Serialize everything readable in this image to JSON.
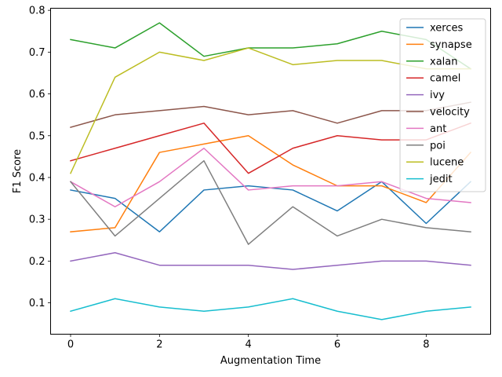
{
  "chart_data": {
    "type": "line",
    "xlabel": "Augmentation Time",
    "ylabel": "F1 Score",
    "x": [
      0,
      1,
      2,
      3,
      4,
      5,
      6,
      7,
      8,
      9
    ],
    "xlim": [
      -0.45,
      9.45
    ],
    "ylim": [
      0.025,
      0.805
    ],
    "xticks": [
      0,
      2,
      4,
      6,
      8
    ],
    "yticks": [
      0.1,
      0.2,
      0.3,
      0.4,
      0.5,
      0.6,
      0.7,
      0.8
    ],
    "ytick_labels": [
      "0.1",
      "0.2",
      "0.3",
      "0.4",
      "0.5",
      "0.6",
      "0.7",
      "0.8"
    ],
    "grid": false,
    "legend_position": "top-right",
    "series": [
      {
        "name": "xerces",
        "color": "#1f77b4",
        "values": [
          0.37,
          0.35,
          0.27,
          0.37,
          0.38,
          0.37,
          0.32,
          0.39,
          0.29,
          0.39
        ]
      },
      {
        "name": "synapse",
        "color": "#ff7f0e",
        "values": [
          0.27,
          0.28,
          0.46,
          0.48,
          0.5,
          0.43,
          0.38,
          0.38,
          0.34,
          0.46
        ]
      },
      {
        "name": "xalan",
        "color": "#2ca02c",
        "values": [
          0.73,
          0.71,
          0.77,
          0.69,
          0.71,
          0.71,
          0.72,
          0.75,
          0.73,
          0.66
        ]
      },
      {
        "name": "camel",
        "color": "#d62728",
        "values": [
          0.44,
          0.47,
          0.5,
          0.53,
          0.41,
          0.47,
          0.5,
          0.49,
          0.49,
          0.53
        ]
      },
      {
        "name": "ivy",
        "color": "#9467bd",
        "values": [
          0.2,
          0.22,
          0.19,
          0.19,
          0.19,
          0.18,
          0.19,
          0.2,
          0.2,
          0.19
        ]
      },
      {
        "name": "velocity",
        "color": "#8c564b",
        "values": [
          0.52,
          0.55,
          0.56,
          0.57,
          0.55,
          0.56,
          0.53,
          0.56,
          0.56,
          0.58
        ]
      },
      {
        "name": "ant",
        "color": "#e377c2",
        "values": [
          0.39,
          0.33,
          0.39,
          0.47,
          0.37,
          0.38,
          0.38,
          0.39,
          0.35,
          0.34
        ]
      },
      {
        "name": "poi",
        "color": "#7f7f7f",
        "values": [
          0.39,
          0.26,
          0.35,
          0.44,
          0.24,
          0.33,
          0.26,
          0.3,
          0.28,
          0.27
        ]
      },
      {
        "name": "lucene",
        "color": "#bcbd22",
        "values": [
          0.41,
          0.64,
          0.7,
          0.68,
          0.71,
          0.67,
          0.68,
          0.68,
          0.66,
          0.66
        ]
      },
      {
        "name": "jedit",
        "color": "#17becf",
        "values": [
          0.08,
          0.11,
          0.09,
          0.08,
          0.09,
          0.11,
          0.08,
          0.06,
          0.08,
          0.09
        ]
      }
    ]
  }
}
